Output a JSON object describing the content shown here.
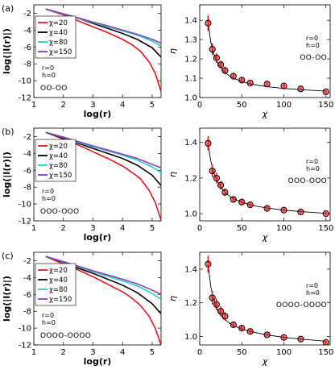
{
  "chart_data": [
    {
      "type": "line",
      "panel_label": "(a)",
      "xlabel": "log(r)",
      "ylabel": "log(|I(r)|)",
      "xlim": [
        1,
        5.3
      ],
      "ylim": [
        -12,
        -1
      ],
      "xticks": [
        1,
        2,
        3,
        4,
        5
      ],
      "yticks": [
        -2,
        -4,
        -6,
        -8,
        -10,
        -12
      ],
      "legend_position": "top-left",
      "series": [
        {
          "name": "χ=20",
          "color": "#e8141c",
          "x": [
            1.4,
            2,
            2.5,
            3,
            3.5,
            4,
            4.3,
            4.6,
            4.9,
            5.1,
            5.3
          ],
          "y": [
            -1.5,
            -2.2,
            -2.9,
            -3.6,
            -4.3,
            -5.1,
            -5.7,
            -6.5,
            -7.8,
            -9.1,
            -11.3
          ]
        },
        {
          "name": "χ=40",
          "color": "#000000",
          "x": [
            1.4,
            2,
            2.5,
            3,
            3.5,
            4,
            4.5,
            5,
            5.3
          ],
          "y": [
            -1.5,
            -2.1,
            -2.6,
            -3.2,
            -3.8,
            -4.4,
            -5.1,
            -6.1,
            -7.2
          ]
        },
        {
          "name": "χ=80",
          "color": "#22d4c0",
          "x": [
            1.4,
            2,
            2.5,
            3,
            3.5,
            4,
            4.5,
            5,
            5.3
          ],
          "y": [
            -1.5,
            -2.1,
            -2.6,
            -3.1,
            -3.6,
            -4.1,
            -4.6,
            -5.3,
            -5.9
          ]
        },
        {
          "name": "χ=150",
          "color": "#8a3dc4",
          "x": [
            1.4,
            2,
            2.5,
            3,
            3.5,
            4,
            4.5,
            5,
            5.3
          ],
          "y": [
            -1.5,
            -2.05,
            -2.55,
            -3.05,
            -3.5,
            -4.0,
            -4.5,
            -5.1,
            -5.55
          ]
        }
      ],
      "annotations": [
        "r=0",
        "h=0",
        "OO-OO"
      ]
    },
    {
      "type": "scatter",
      "xlabel": "χ",
      "ylabel": "η",
      "xlim": [
        0,
        155
      ],
      "ylim": [
        1.0,
        1.48
      ],
      "xticks": [
        0,
        50,
        100,
        150
      ],
      "yticks": [
        1.0,
        1.1,
        1.2,
        1.3,
        1.4
      ],
      "fit_line": {
        "color": "#000000",
        "x": [
          10,
          13,
          16,
          20,
          25,
          30,
          35,
          40,
          50,
          60,
          70,
          80,
          100,
          120,
          150
        ],
        "y": [
          1.39,
          1.29,
          1.235,
          1.19,
          1.155,
          1.13,
          1.113,
          1.1,
          1.083,
          1.071,
          1.062,
          1.056,
          1.047,
          1.041,
          1.033
        ]
      },
      "series": [
        {
          "name": "",
          "color": "#e8141c",
          "x": [
            10,
            15,
            20,
            25,
            30,
            40,
            50,
            60,
            80,
            100,
            120,
            150
          ],
          "y": [
            1.385,
            1.25,
            1.205,
            1.17,
            1.14,
            1.11,
            1.09,
            1.075,
            1.07,
            1.06,
            1.045,
            1.03
          ],
          "yerr": [
            0.04,
            0.03,
            0.025,
            0.02,
            0.02,
            0.015,
            0.012,
            0.01,
            0.01,
            0.01,
            0.008,
            0.008
          ]
        }
      ],
      "annotations": [
        "r=0",
        "h=0",
        "OO-OO"
      ]
    },
    {
      "type": "line",
      "panel_label": "(b)",
      "xlabel": "log(r)",
      "ylabel": "log(|I(r)|)",
      "xlim": [
        1,
        5.3
      ],
      "ylim": [
        -12,
        -1
      ],
      "xticks": [
        1,
        2,
        3,
        4,
        5
      ],
      "yticks": [
        -2,
        -4,
        -6,
        -8,
        -10,
        -12
      ],
      "legend_position": "top-left",
      "series": [
        {
          "name": "χ=20",
          "color": "#e8141c",
          "x": [
            1.4,
            2,
            2.5,
            3,
            3.5,
            4,
            4.3,
            4.6,
            4.9,
            5.1,
            5.3
          ],
          "y": [
            -1.5,
            -2.3,
            -3.0,
            -3.8,
            -4.6,
            -5.5,
            -6.2,
            -7.0,
            -8.4,
            -9.8,
            -11.9
          ]
        },
        {
          "name": "χ=40",
          "color": "#000000",
          "x": [
            1.4,
            2,
            2.5,
            3,
            3.5,
            4,
            4.5,
            5,
            5.3
          ],
          "y": [
            -1.5,
            -2.2,
            -2.8,
            -3.4,
            -4.0,
            -4.6,
            -5.4,
            -6.6,
            -7.8
          ]
        },
        {
          "name": "χ=80",
          "color": "#22d4c0",
          "x": [
            1.4,
            2,
            2.5,
            3,
            3.5,
            4,
            4.5,
            5,
            5.3
          ],
          "y": [
            -1.5,
            -2.1,
            -2.7,
            -3.2,
            -3.7,
            -4.2,
            -4.8,
            -5.6,
            -6.3
          ]
        },
        {
          "name": "χ=150",
          "color": "#8a3dc4",
          "x": [
            1.4,
            2,
            2.5,
            3,
            3.5,
            4,
            4.5,
            5,
            5.3
          ],
          "y": [
            -1.5,
            -2.05,
            -2.6,
            -3.1,
            -3.6,
            -4.1,
            -4.6,
            -5.3,
            -5.7
          ]
        }
      ],
      "annotations": [
        "r=0",
        "h=0",
        "OOO-OOO"
      ]
    },
    {
      "type": "scatter",
      "xlabel": "χ",
      "ylabel": "η",
      "xlim": [
        0,
        155
      ],
      "ylim": [
        0.96,
        1.48
      ],
      "xticks": [
        0,
        50,
        100,
        150
      ],
      "yticks": [
        1.0,
        1.2,
        1.4
      ],
      "fit_line": {
        "color": "#000000",
        "x": [
          10,
          13,
          16,
          20,
          25,
          30,
          35,
          40,
          50,
          60,
          70,
          80,
          100,
          120,
          150
        ],
        "y": [
          1.39,
          1.3,
          1.24,
          1.19,
          1.15,
          1.12,
          1.1,
          1.085,
          1.065,
          1.05,
          1.04,
          1.032,
          1.02,
          1.012,
          1.002
        ]
      },
      "series": [
        {
          "name": "",
          "color": "#e8141c",
          "x": [
            10,
            15,
            20,
            25,
            30,
            40,
            50,
            60,
            80,
            100,
            120,
            150
          ],
          "y": [
            1.395,
            1.24,
            1.2,
            1.16,
            1.12,
            1.08,
            1.065,
            1.05,
            1.03,
            1.02,
            1.01,
            1.0
          ],
          "yerr": [
            0.04,
            0.035,
            0.03,
            0.025,
            0.02,
            0.015,
            0.012,
            0.01,
            0.01,
            0.008,
            0.008,
            0.008
          ]
        }
      ],
      "annotations": [
        "r=0",
        "h=0",
        "OOO-OOO"
      ]
    },
    {
      "type": "line",
      "panel_label": "(c)",
      "xlabel": "log(r)",
      "ylabel": "log(|I(r)|)",
      "xlim": [
        1,
        5.3
      ],
      "ylim": [
        -12,
        -1
      ],
      "xticks": [
        1,
        2,
        3,
        4,
        5
      ],
      "yticks": [
        -2,
        -4,
        -6,
        -8,
        -10,
        -12
      ],
      "legend_position": "top-left",
      "series": [
        {
          "name": "χ=20",
          "color": "#e8141c",
          "x": [
            1.4,
            2,
            2.5,
            3,
            3.5,
            4,
            4.3,
            4.6,
            4.9,
            5.1,
            5.3
          ],
          "y": [
            -1.5,
            -2.4,
            -3.1,
            -3.9,
            -4.8,
            -5.7,
            -6.4,
            -7.3,
            -8.6,
            -10.0,
            -12.0
          ]
        },
        {
          "name": "χ=40",
          "color": "#000000",
          "x": [
            1.4,
            2,
            2.5,
            3,
            3.5,
            4,
            4.5,
            5,
            5.3
          ],
          "y": [
            -1.5,
            -2.2,
            -2.9,
            -3.5,
            -4.2,
            -4.9,
            -5.8,
            -7.1,
            -8.3
          ]
        },
        {
          "name": "χ=80",
          "color": "#22d4c0",
          "x": [
            1.4,
            2,
            2.5,
            3,
            3.5,
            4,
            4.5,
            5,
            5.3
          ],
          "y": [
            -1.5,
            -2.15,
            -2.75,
            -3.3,
            -3.85,
            -4.4,
            -5.0,
            -5.9,
            -6.6
          ]
        },
        {
          "name": "χ=150",
          "color": "#8a3dc4",
          "x": [
            1.4,
            2,
            2.5,
            3,
            3.5,
            4,
            4.5,
            5,
            5.3
          ],
          "y": [
            -1.5,
            -2.1,
            -2.65,
            -3.2,
            -3.7,
            -4.2,
            -4.75,
            -5.5,
            -6.0
          ]
        }
      ],
      "annotations": [
        "r=0",
        "h=0",
        "OOOO-OOOO"
      ]
    },
    {
      "type": "scatter",
      "xlabel": "χ",
      "ylabel": "η",
      "xlim": [
        0,
        155
      ],
      "ylim": [
        0.95,
        1.5
      ],
      "xticks": [
        0,
        50,
        100,
        150
      ],
      "yticks": [
        1.0,
        1.2,
        1.4
      ],
      "fit_line": {
        "color": "#000000",
        "x": [
          10,
          13,
          16,
          20,
          25,
          30,
          35,
          40,
          50,
          60,
          70,
          80,
          100,
          120,
          150
        ],
        "y": [
          1.43,
          1.3,
          1.23,
          1.17,
          1.13,
          1.1,
          1.08,
          1.065,
          1.045,
          1.03,
          1.02,
          1.01,
          0.995,
          0.985,
          0.972
        ]
      },
      "series": [
        {
          "name": "",
          "color": "#e8141c",
          "x": [
            10,
            15,
            20,
            25,
            30,
            40,
            50,
            60,
            80,
            100,
            120,
            150
          ],
          "y": [
            1.43,
            1.23,
            1.19,
            1.15,
            1.12,
            1.07,
            1.05,
            1.03,
            1.01,
            0.995,
            0.985,
            0.965
          ],
          "yerr": [
            0.05,
            0.04,
            0.035,
            0.03,
            0.025,
            0.02,
            0.015,
            0.012,
            0.01,
            0.01,
            0.008,
            0.008
          ]
        }
      ],
      "annotations": [
        "r=0",
        "h=0",
        "OOOO-OOOO"
      ]
    }
  ]
}
